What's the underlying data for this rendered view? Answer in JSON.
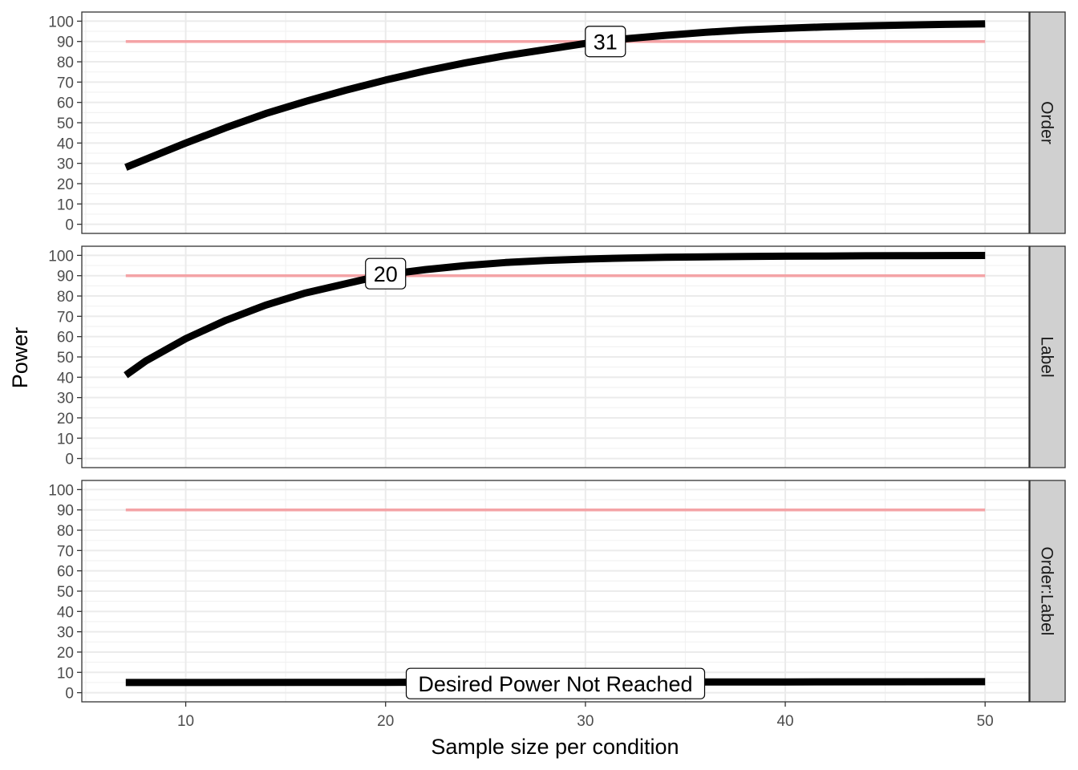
{
  "chart_data": {
    "type": "line",
    "xlabel": "Sample size per condition",
    "ylabel": "Power",
    "xlim": [
      4.8,
      52.2
    ],
    "ylim": [
      -4.5,
      104.5
    ],
    "xticks": [
      10,
      20,
      30,
      40,
      50
    ],
    "yticks": [
      0,
      10,
      20,
      30,
      40,
      50,
      60,
      70,
      80,
      90,
      100
    ],
    "desired_power": 90,
    "reference_line_color": "#f4a3a6",
    "power_line_color": "#000000",
    "panel_strip_color": "#d0d0d0",
    "grid": true,
    "panels": [
      {
        "name": "Order",
        "x": [
          7,
          8,
          10,
          12,
          14,
          16,
          18,
          20,
          22,
          24,
          26,
          28,
          30,
          31,
          32,
          34,
          36,
          38,
          40,
          42,
          44,
          46,
          48,
          50
        ],
        "y": [
          28,
          32,
          40,
          47.5,
          54.5,
          60.5,
          66,
          71,
          75.5,
          79.5,
          83,
          86,
          89,
          90.2,
          91.3,
          93,
          94.5,
          95.7,
          96.5,
          97.2,
          97.7,
          98.1,
          98.4,
          98.7
        ],
        "annotation": "31",
        "annotation_x": 31,
        "annotation_y": 90
      },
      {
        "name": "Label",
        "x": [
          7,
          8,
          10,
          12,
          14,
          16,
          18,
          20,
          22,
          24,
          26,
          28,
          30,
          32,
          34,
          36,
          38,
          40,
          42,
          44,
          46,
          48,
          50
        ],
        "y": [
          41,
          48,
          59,
          68,
          75.5,
          81.5,
          86,
          90.5,
          93,
          95,
          96.5,
          97.5,
          98.2,
          98.7,
          99.1,
          99.3,
          99.5,
          99.6,
          99.7,
          99.8,
          99.85,
          99.9,
          99.95
        ],
        "annotation": "20",
        "annotation_x": 20,
        "annotation_y": 91
      },
      {
        "name": "Order:Label",
        "x": [
          7,
          10,
          20,
          30,
          40,
          50
        ],
        "y": [
          5,
          5,
          5.1,
          5.2,
          5.3,
          5.4
        ],
        "annotation": "Desired Power Not Reached",
        "annotation_x": 28.5,
        "annotation_y": 4.5
      }
    ]
  }
}
